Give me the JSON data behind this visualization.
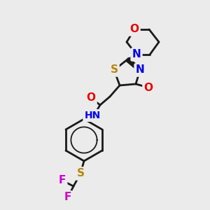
{
  "bg_color": "#ebebeb",
  "bond_color": "#1a1a1a",
  "bond_width": 2.0,
  "atom_colors": {
    "S": "#b8860b",
    "N": "#0000ee",
    "O": "#ee0000",
    "F": "#cc00cc",
    "C": "#1a1a1a",
    "H": "#1a1a1a"
  },
  "font_size": 10,
  "figsize": [
    3.0,
    3.0
  ],
  "dpi": 100
}
